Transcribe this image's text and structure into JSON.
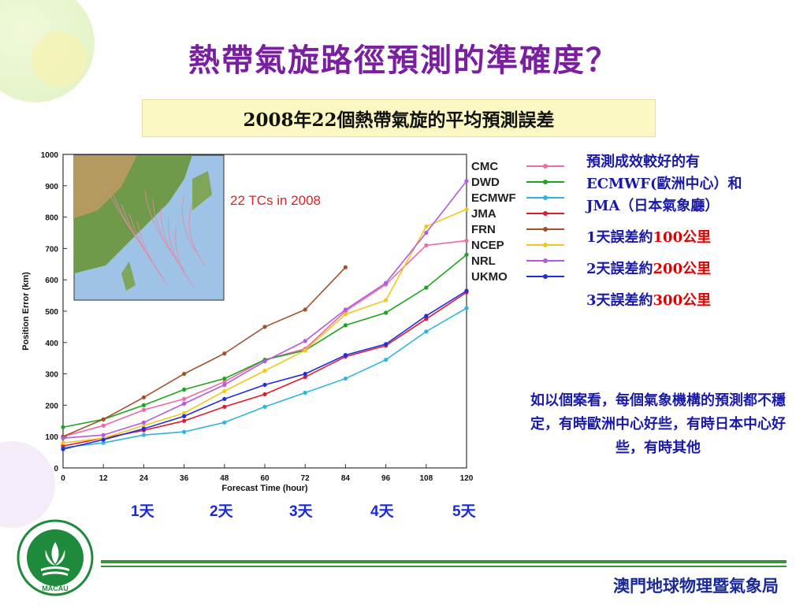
{
  "title": "熱帶氣旋路徑預測的準確度？",
  "subtitle": "2008年22個熱帶氣旋的平均預測誤差",
  "inset_label": "22 TCs in 2008",
  "day_labels": [
    "1天",
    "2天",
    "3天",
    "4天",
    "5天"
  ],
  "notes": {
    "line1": "預測成效較好的有",
    "line2": "ECMWF(歐洲中心）和",
    "line3": "JMA（日本氣象廳）",
    "err1_prefix": "1天誤差約",
    "err1_value": "100",
    "err1_unit": "公里",
    "err2_prefix": "2天誤差約",
    "err2_value": "200",
    "err2_unit": "公里",
    "err3_prefix": "3天誤差約",
    "err3_value": "300",
    "err3_unit": "公里"
  },
  "paragraph": "如以個案看，每個氣象機構的預測都不穩定，有時歐洲中心好些，有時日本中心好些，有時其他",
  "footer": "澳門地球物理暨氣象局",
  "emblem_text": "MACAU",
  "colors": {
    "CMC": "#ee6aa8",
    "DWD": "#1ea51e",
    "ECMWF": "#2fb4dc",
    "JMA": "#e01c2c",
    "FRN": "#a0522d",
    "NCEP": "#f0c81e",
    "NRL": "#b45ae0",
    "UKMO": "#1e2ee0"
  },
  "chart_data": {
    "type": "line",
    "xlabel": "Forecast Time (hour)",
    "ylabel": "Position Error (km)",
    "xlim": [
      0,
      120
    ],
    "ylim": [
      0,
      1000
    ],
    "xticks": [
      0,
      12,
      24,
      36,
      48,
      60,
      72,
      84,
      96,
      108,
      120
    ],
    "yticks": [
      0,
      100,
      200,
      300,
      400,
      500,
      600,
      700,
      800,
      900,
      1000
    ],
    "legend_position": "right",
    "grid": false,
    "x": [
      0,
      12,
      24,
      36,
      48,
      60,
      72,
      84,
      96,
      108,
      120
    ],
    "series": [
      {
        "name": "CMC",
        "values": [
          100,
          135,
          185,
          220,
          275,
          345,
          380,
          500,
          585,
          710,
          725
        ]
      },
      {
        "name": "DWD",
        "values": [
          130,
          155,
          200,
          250,
          285,
          345,
          375,
          455,
          495,
          575,
          680
        ]
      },
      {
        "name": "ECMWF",
        "values": [
          65,
          80,
          105,
          115,
          145,
          195,
          240,
          285,
          345,
          435,
          510
        ]
      },
      {
        "name": "JMA",
        "values": [
          70,
          95,
          120,
          150,
          195,
          235,
          290,
          355,
          390,
          475,
          560
        ]
      },
      {
        "name": "FRN",
        "values": [
          100,
          155,
          225,
          300,
          365,
          450,
          505,
          640,
          null,
          null,
          null
        ]
      },
      {
        "name": "NCEP",
        "values": [
          80,
          95,
          135,
          175,
          245,
          310,
          375,
          490,
          535,
          770,
          825
        ]
      },
      {
        "name": "NRL",
        "values": [
          95,
          105,
          145,
          205,
          265,
          340,
          405,
          505,
          590,
          750,
          915
        ]
      },
      {
        "name": "UKMO",
        "values": [
          60,
          90,
          125,
          165,
          220,
          265,
          300,
          360,
          395,
          485,
          565
        ]
      }
    ]
  }
}
